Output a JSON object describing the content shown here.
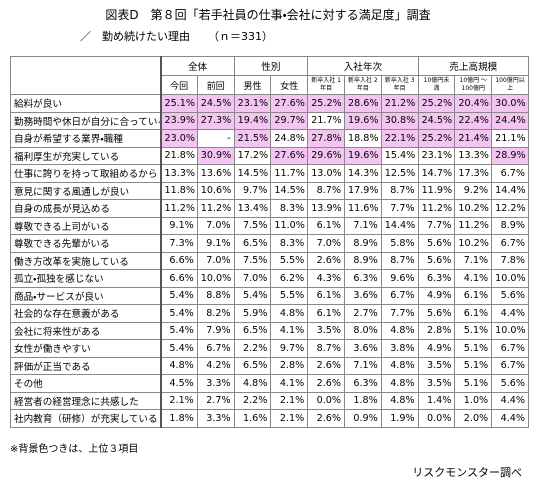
{
  "header": {
    "title": "図表D　第８回「若手社員の仕事・会社に対する満足度」調査",
    "subtitle": "／　勤め続けたい理由",
    "sample": "（ｎ＝331）"
  },
  "table": {
    "groups": [
      {
        "label": "全体",
        "span": 2
      },
      {
        "label": "性別",
        "span": 2
      },
      {
        "label": "入社年次",
        "span": 3
      },
      {
        "label": "売上高規模",
        "span": 3
      }
    ],
    "columns": [
      "今回",
      "前回",
      "男性",
      "女性",
      "新卒入社 1年目",
      "新卒入社 2年目",
      "新卒入社 3年目",
      "10億円未満",
      "10億円 ～ 100億円",
      "100億円以上"
    ],
    "rows": [
      {
        "label": "給料が良い",
        "values": [
          "25.1%",
          "24.5%",
          "23.1%",
          "27.6%",
          "25.2%",
          "28.6%",
          "21.2%",
          "25.2%",
          "20.4%",
          "30.0%"
        ],
        "highlight": [
          0,
          1,
          2,
          3,
          4,
          5,
          6,
          7,
          8,
          9
        ]
      },
      {
        "label": "勤務時間や休日が自分に合っている",
        "values": [
          "23.9%",
          "27.3%",
          "19.4%",
          "29.7%",
          "21.7%",
          "19.6%",
          "30.8%",
          "24.5%",
          "22.4%",
          "24.4%"
        ],
        "highlight": [
          0,
          1,
          2,
          3,
          5,
          6,
          7,
          8,
          9
        ]
      },
      {
        "label": "自身が希望する業界・職種",
        "values": [
          "23.0%",
          "-",
          "21.5%",
          "24.8%",
          "27.8%",
          "18.8%",
          "22.1%",
          "25.2%",
          "21.4%",
          "21.1%"
        ],
        "highlight": [
          0,
          2,
          4,
          6,
          7,
          8
        ]
      },
      {
        "label": "福利厚生が充実している",
        "values": [
          "21.8%",
          "30.9%",
          "17.2%",
          "27.6%",
          "29.6%",
          "19.6%",
          "15.4%",
          "23.1%",
          "13.3%",
          "28.9%"
        ],
        "highlight": [
          1,
          3,
          4,
          5,
          9
        ]
      },
      {
        "label": "仕事に誇りを持って取組めるから",
        "values": [
          "13.3%",
          "13.6%",
          "14.5%",
          "11.7%",
          "13.0%",
          "14.3%",
          "12.5%",
          "14.7%",
          "17.3%",
          "6.7%"
        ],
        "highlight": []
      },
      {
        "label": "意見に関する風通しが良い",
        "values": [
          "11.8%",
          "10.6%",
          "9.7%",
          "14.5%",
          "8.7%",
          "17.9%",
          "8.7%",
          "11.9%",
          "9.2%",
          "14.4%"
        ],
        "highlight": []
      },
      {
        "label": "自身の成長が見込める",
        "values": [
          "11.2%",
          "11.2%",
          "13.4%",
          "8.3%",
          "13.9%",
          "11.6%",
          "7.7%",
          "11.2%",
          "10.2%",
          "12.2%"
        ],
        "highlight": []
      },
      {
        "label": "尊敬できる上司がいる",
        "values": [
          "9.1%",
          "7.0%",
          "7.5%",
          "11.0%",
          "6.1%",
          "7.1%",
          "14.4%",
          "7.7%",
          "11.2%",
          "8.9%"
        ],
        "highlight": []
      },
      {
        "label": "尊敬できる先輩がいる",
        "values": [
          "7.3%",
          "9.1%",
          "6.5%",
          "8.3%",
          "7.0%",
          "8.9%",
          "5.8%",
          "5.6%",
          "10.2%",
          "6.7%"
        ],
        "highlight": []
      },
      {
        "label": "働き方改革を実施している",
        "values": [
          "6.6%",
          "7.0%",
          "7.5%",
          "5.5%",
          "2.6%",
          "8.9%",
          "8.7%",
          "5.6%",
          "7.1%",
          "7.8%"
        ],
        "highlight": []
      },
      {
        "label": "孤立・孤独を感じない",
        "values": [
          "6.6%",
          "10.0%",
          "7.0%",
          "6.2%",
          "4.3%",
          "6.3%",
          "9.6%",
          "6.3%",
          "4.1%",
          "10.0%"
        ],
        "highlight": []
      },
      {
        "label": "商品・サービスが良い",
        "values": [
          "5.4%",
          "8.8%",
          "5.4%",
          "5.5%",
          "6.1%",
          "3.6%",
          "6.7%",
          "4.9%",
          "6.1%",
          "5.6%"
        ],
        "highlight": []
      },
      {
        "label": "社会的な存在意義がある",
        "values": [
          "5.4%",
          "8.2%",
          "5.9%",
          "4.8%",
          "6.1%",
          "2.7%",
          "7.7%",
          "5.6%",
          "6.1%",
          "4.4%"
        ],
        "highlight": []
      },
      {
        "label": "会社に将来性がある",
        "values": [
          "5.4%",
          "7.9%",
          "6.5%",
          "4.1%",
          "3.5%",
          "8.0%",
          "4.8%",
          "2.8%",
          "5.1%",
          "10.0%"
        ],
        "highlight": []
      },
      {
        "label": "女性が働きやすい",
        "values": [
          "5.4%",
          "6.7%",
          "2.2%",
          "9.7%",
          "8.7%",
          "3.6%",
          "3.8%",
          "4.9%",
          "5.1%",
          "6.7%"
        ],
        "highlight": []
      },
      {
        "label": "評価が正当である",
        "values": [
          "4.8%",
          "4.2%",
          "6.5%",
          "2.8%",
          "2.6%",
          "7.1%",
          "4.8%",
          "3.5%",
          "5.1%",
          "6.7%"
        ],
        "highlight": []
      },
      {
        "label": "その他",
        "values": [
          "4.5%",
          "3.3%",
          "4.8%",
          "4.1%",
          "2.6%",
          "6.3%",
          "4.8%",
          "3.5%",
          "5.1%",
          "5.6%"
        ],
        "highlight": []
      },
      {
        "label": "経営者の経営理念に共感した",
        "values": [
          "2.1%",
          "2.7%",
          "2.2%",
          "2.1%",
          "0.0%",
          "1.8%",
          "4.8%",
          "1.4%",
          "1.0%",
          "4.4%"
        ],
        "highlight": []
      },
      {
        "label": "社内教育（研修）が充実している",
        "values": [
          "1.8%",
          "3.3%",
          "1.6%",
          "2.1%",
          "2.6%",
          "0.9%",
          "1.9%",
          "0.0%",
          "2.0%",
          "4.4%"
        ],
        "highlight": []
      }
    ]
  },
  "footer": {
    "note": "※背景色つきは、上位３項目",
    "source": "リスクモンスター調べ"
  }
}
